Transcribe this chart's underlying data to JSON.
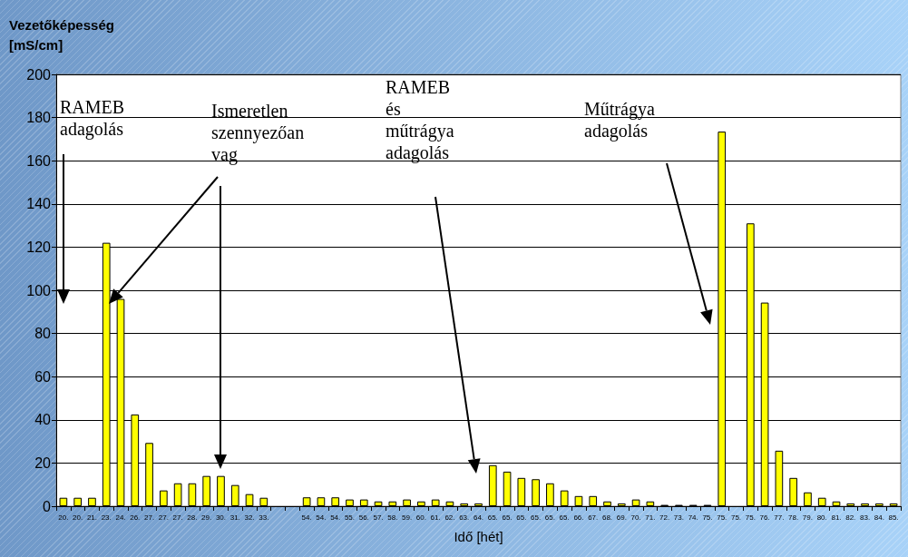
{
  "chart_data": {
    "type": "bar",
    "ylabel": "Vezetőképesség\n[mS/cm]",
    "xlabel": "Idő [hét]",
    "categories": [
      "20.",
      "20.",
      "21.",
      "23.",
      "24.",
      "26.",
      "27.",
      "27.",
      "27.",
      "28.",
      "29.",
      "30.",
      "31.",
      "32.",
      "33.",
      null,
      null,
      "54.",
      "54.",
      "54.",
      "55.",
      "56.",
      "57.",
      "58.",
      "59.",
      "60.",
      "61.",
      "62.",
      "63.",
      "64.",
      "65.",
      "65.",
      "65.",
      "65.",
      "65.",
      "65.",
      "66.",
      "67.",
      "68.",
      "69.",
      "70.",
      "71.",
      "72.",
      "73.",
      "74.",
      "75.",
      "75.",
      "75.",
      "75.",
      "76.",
      "77.",
      "78.",
      "79.",
      "80.",
      "81.",
      "82.",
      "83.",
      "84.",
      "85."
    ],
    "values": [
      3.9,
      3.9,
      3.9,
      122,
      96,
      42.5,
      29.3,
      7.3,
      10.6,
      10.6,
      14,
      14,
      9.8,
      5.6,
      3.9,
      null,
      null,
      4.1,
      4.1,
      4.1,
      3.1,
      3.1,
      2.2,
      2.2,
      3.1,
      2.2,
      3.1,
      2.2,
      1.3,
      1.3,
      19,
      16,
      13.1,
      12.5,
      10.6,
      7.3,
      4.7,
      4.7,
      2.2,
      1.3,
      3.1,
      2.2,
      0.6,
      0.6,
      0.6,
      0.6,
      173.5,
      null,
      131,
      94.3,
      25.7,
      13.1,
      6.4,
      3.9,
      2.2,
      1.3,
      1.3,
      1.3,
      1.3
    ],
    "color": "#ffff00",
    "ylim": [
      0,
      200
    ],
    "yticks": [
      0,
      20,
      40,
      60,
      80,
      100,
      120,
      140,
      160,
      180,
      200
    ],
    "grid": "y",
    "annotations": [
      "RAMEB\nadagolás",
      "Ismeretlen\nszennyezőan\nvag",
      "RAMEB\nés\nműtrágya\nadagolás",
      "Műtrágya\nadagolás"
    ]
  }
}
